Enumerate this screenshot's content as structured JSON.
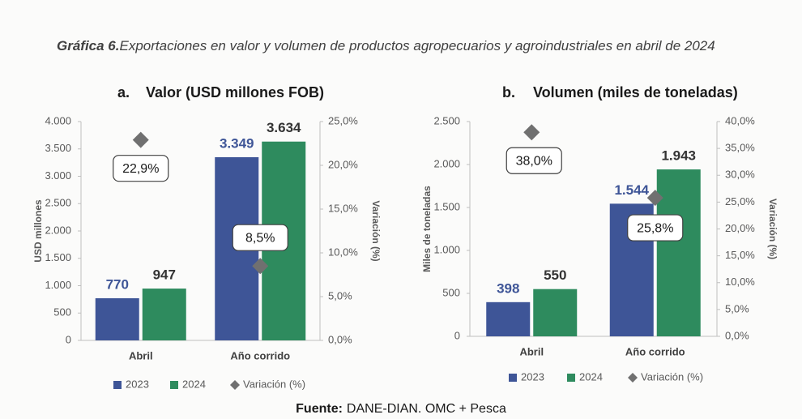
{
  "title_label": "Gráfica 6.",
  "title": "Exportaciones en valor y volumen de productos agropecuarios y agroindustriales en abril de 2024",
  "source_label": "Fuente:",
  "source": "DANE-DIAN. OMC + Pesca",
  "chart_data": [
    {
      "type": "bar",
      "panel_label": "a.",
      "title": "Valor (USD millones FOB)",
      "ylabel": "USD millones",
      "y2label": "Variación (%)",
      "categories": [
        "Abril",
        "Año corrido"
      ],
      "series": [
        {
          "name": "2023",
          "color": "#3e5597",
          "values": [
            770,
            3349
          ],
          "value_labels": [
            "770",
            "3.349"
          ]
        },
        {
          "name": "2024",
          "color": "#2e8b5e",
          "values": [
            947,
            3634
          ],
          "value_labels": [
            "947",
            "3.634"
          ]
        },
        {
          "name": "Variación (%)",
          "color": "#707070",
          "axis": "y2",
          "values": [
            22.9,
            8.5
          ],
          "value_labels": [
            "22,9%",
            "8,5%"
          ]
        }
      ],
      "ylim": [
        0,
        4000
      ],
      "yticks": [
        0,
        500,
        {
          "value": 1000,
          "label": "1.000"
        },
        {
          "value": 1500,
          "label": "1.500"
        },
        {
          "value": 2000,
          "label": "2.000"
        },
        {
          "value": 2500,
          "label": "2.500"
        },
        {
          "value": 3000,
          "label": "3.000"
        },
        {
          "value": 3500,
          "label": "3.500"
        },
        {
          "value": 4000,
          "label": "4.000"
        }
      ],
      "y2lim": [
        0,
        25
      ],
      "y2ticks": [
        {
          "value": 0,
          "label": "0,0%"
        },
        {
          "value": 5,
          "label": "5,0%"
        },
        {
          "value": 10,
          "label": "10,0%"
        },
        {
          "value": 15,
          "label": "15,0%"
        },
        {
          "value": 20,
          "label": "20,0%"
        },
        {
          "value": 25,
          "label": "25,0%"
        }
      ]
    },
    {
      "type": "bar",
      "panel_label": "b.",
      "title": "Volumen (miles de toneladas)",
      "ylabel": "Miles de toneladas",
      "y2label": "Variación (%)",
      "categories": [
        "Abril",
        "Año corrido"
      ],
      "series": [
        {
          "name": "2023",
          "color": "#3e5597",
          "values": [
            398,
            1544
          ],
          "value_labels": [
            "398",
            "1.544"
          ]
        },
        {
          "name": "2024",
          "color": "#2e8b5e",
          "values": [
            550,
            1943
          ],
          "value_labels": [
            "550",
            "1.943"
          ]
        },
        {
          "name": "Variación (%)",
          "color": "#707070",
          "axis": "y2",
          "values": [
            38.0,
            25.8
          ],
          "value_labels": [
            "38,0%",
            "25,8%"
          ]
        }
      ],
      "ylim": [
        0,
        2500
      ],
      "yticks": [
        0,
        500,
        {
          "value": 1000,
          "label": "1.000"
        },
        {
          "value": 1500,
          "label": "1.500"
        },
        {
          "value": 2000,
          "label": "2.000"
        },
        {
          "value": 2500,
          "label": "2.500"
        }
      ],
      "y2lim": [
        0,
        40
      ],
      "y2ticks": [
        {
          "value": 0,
          "label": "0,0%"
        },
        {
          "value": 5,
          "label": "5,0%"
        },
        {
          "value": 10,
          "label": "10,0%"
        },
        {
          "value": 15,
          "label": "15,0%"
        },
        {
          "value": 20,
          "label": "20,0%"
        },
        {
          "value": 25,
          "label": "25,0%"
        },
        {
          "value": 30,
          "label": "30,0%"
        },
        {
          "value": 35,
          "label": "35,0%"
        },
        {
          "value": 40,
          "label": "40,0%"
        }
      ]
    }
  ]
}
